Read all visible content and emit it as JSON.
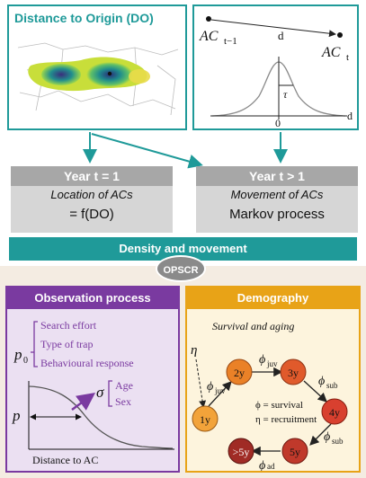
{
  "top": {
    "do_title": "Distance to Origin (DO)",
    "ac_prev": "AC",
    "ac_prev_sub": "t−1",
    "ac_next": "AC",
    "ac_next_sub": "t",
    "d_label": "d",
    "tau_label": "τ",
    "zero_label": "0",
    "axis_label": "d"
  },
  "year1": {
    "head": "Year t = 1",
    "sub": "Location of ACs",
    "eq": "= f(DO)"
  },
  "year2": {
    "head": "Year t > 1",
    "sub": "Movement of ACs",
    "eq": "Markov process"
  },
  "density_label": "Density and movement",
  "center_label": "OPSCR",
  "observation": {
    "title": "Observation process",
    "p0": "p",
    "p0_sub": "0",
    "p0_items": [
      "Search effort",
      "Type of trap",
      "Behavioural response"
    ],
    "sigma": "σ",
    "sigma_items": [
      "Age",
      "Sex"
    ],
    "p_label": "p",
    "x_label": "Distance to AC"
  },
  "demography": {
    "title": "Demography",
    "subtitle": "Survival and aging",
    "eta": "η",
    "nodes": [
      "1y",
      "2y",
      "3y",
      "4y",
      "5y",
      ">5y"
    ],
    "phi_juv": "ϕ",
    "phi_juv_sub": "juv",
    "phi_sub": "ϕ",
    "phi_sub_sub": "sub",
    "phi_ad": "ϕ",
    "phi_ad_sub": "ad",
    "legend_1": "ϕ = survival",
    "legend_2": "η = recruitment"
  },
  "colors": {
    "teal": "#1f9a99",
    "purple": "#7a3aa0",
    "orange": "#e8a317",
    "node_colors": [
      "#f2a33a",
      "#ea8127",
      "#e05a2b",
      "#d8402f",
      "#c0392b",
      "#a02b25"
    ]
  }
}
